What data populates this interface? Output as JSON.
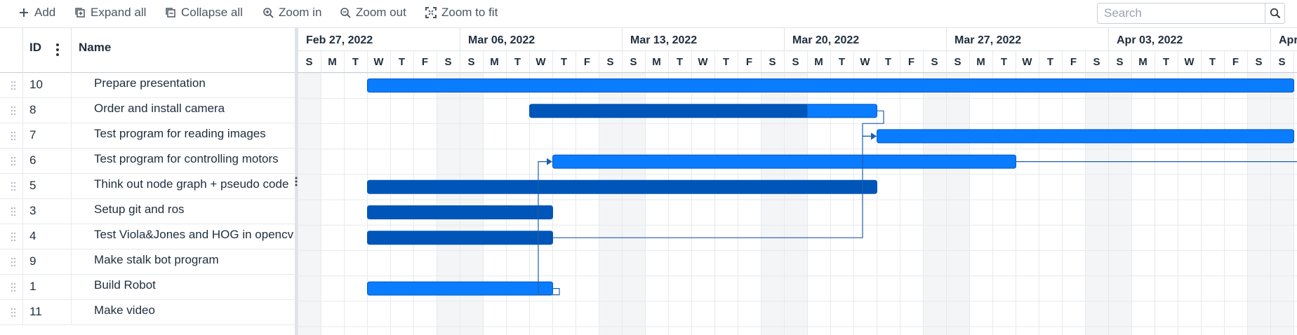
{
  "toolbar": {
    "add_label": "Add",
    "expand_label": "Expand all",
    "collapse_label": "Collapse all",
    "zoom_in_label": "Zoom in",
    "zoom_out_label": "Zoom out",
    "zoom_fit_label": "Zoom to fit",
    "search_placeholder": "Search"
  },
  "grid": {
    "id_header": "ID",
    "name_header": "Name",
    "rows": [
      {
        "id": "10",
        "name": "Prepare presentation"
      },
      {
        "id": "8",
        "name": "Order and install camera"
      },
      {
        "id": "7",
        "name": "Test program for reading images"
      },
      {
        "id": "6",
        "name": "Test program for controlling motors"
      },
      {
        "id": "5",
        "name": "Think out node graph + pseudo code"
      },
      {
        "id": "3",
        "name": "Setup git and ros"
      },
      {
        "id": "4",
        "name": "Test Viola&Jones and HOG in opencv"
      },
      {
        "id": "9",
        "name": "Make stalk bot program"
      },
      {
        "id": "1",
        "name": "Build Robot"
      },
      {
        "id": "11",
        "name": "Make video"
      }
    ]
  },
  "timeline": {
    "weeks": [
      "Feb 27, 2022",
      "Mar 06, 2022",
      "Mar 13, 2022",
      "Mar 20, 2022",
      "Mar 27, 2022",
      "Apr 03, 2022",
      "Apr"
    ],
    "day_letters": [
      "S",
      "M",
      "T",
      "W",
      "T",
      "F",
      "S"
    ]
  },
  "colors": {
    "bar": "#0a7cff",
    "bar_progress": "#0055b8",
    "bar_border": "#0058c2",
    "link": "#1f5fa8",
    "weekend": "#f4f5f7",
    "gridline": "#e6e9ed"
  },
  "tasks": [
    {
      "id": "10",
      "start": "2022-03-02",
      "end": "2022-04-11",
      "progress": 0,
      "open_ended": true
    },
    {
      "id": "8",
      "start": "2022-03-09",
      "end": "2022-03-24",
      "progress": 0.8
    },
    {
      "id": "7",
      "start": "2022-03-24",
      "end": "2022-04-11",
      "progress": 0,
      "open_ended": true
    },
    {
      "id": "6",
      "start": "2022-03-10",
      "end": "2022-03-30",
      "progress": 0
    },
    {
      "id": "5",
      "start": "2022-03-02",
      "end": "2022-03-24",
      "progress": 1
    },
    {
      "id": "3",
      "start": "2022-03-02",
      "end": "2022-03-10",
      "progress": 1
    },
    {
      "id": "4",
      "start": "2022-03-02",
      "end": "2022-03-10",
      "progress": 1
    },
    {
      "id": "1",
      "start": "2022-03-02",
      "end": "2022-03-10",
      "progress": 0
    }
  ],
  "links": [
    {
      "from": "1",
      "to": "6"
    },
    {
      "from": "4",
      "to": "7"
    },
    {
      "from": "8",
      "to": "7"
    }
  ]
}
